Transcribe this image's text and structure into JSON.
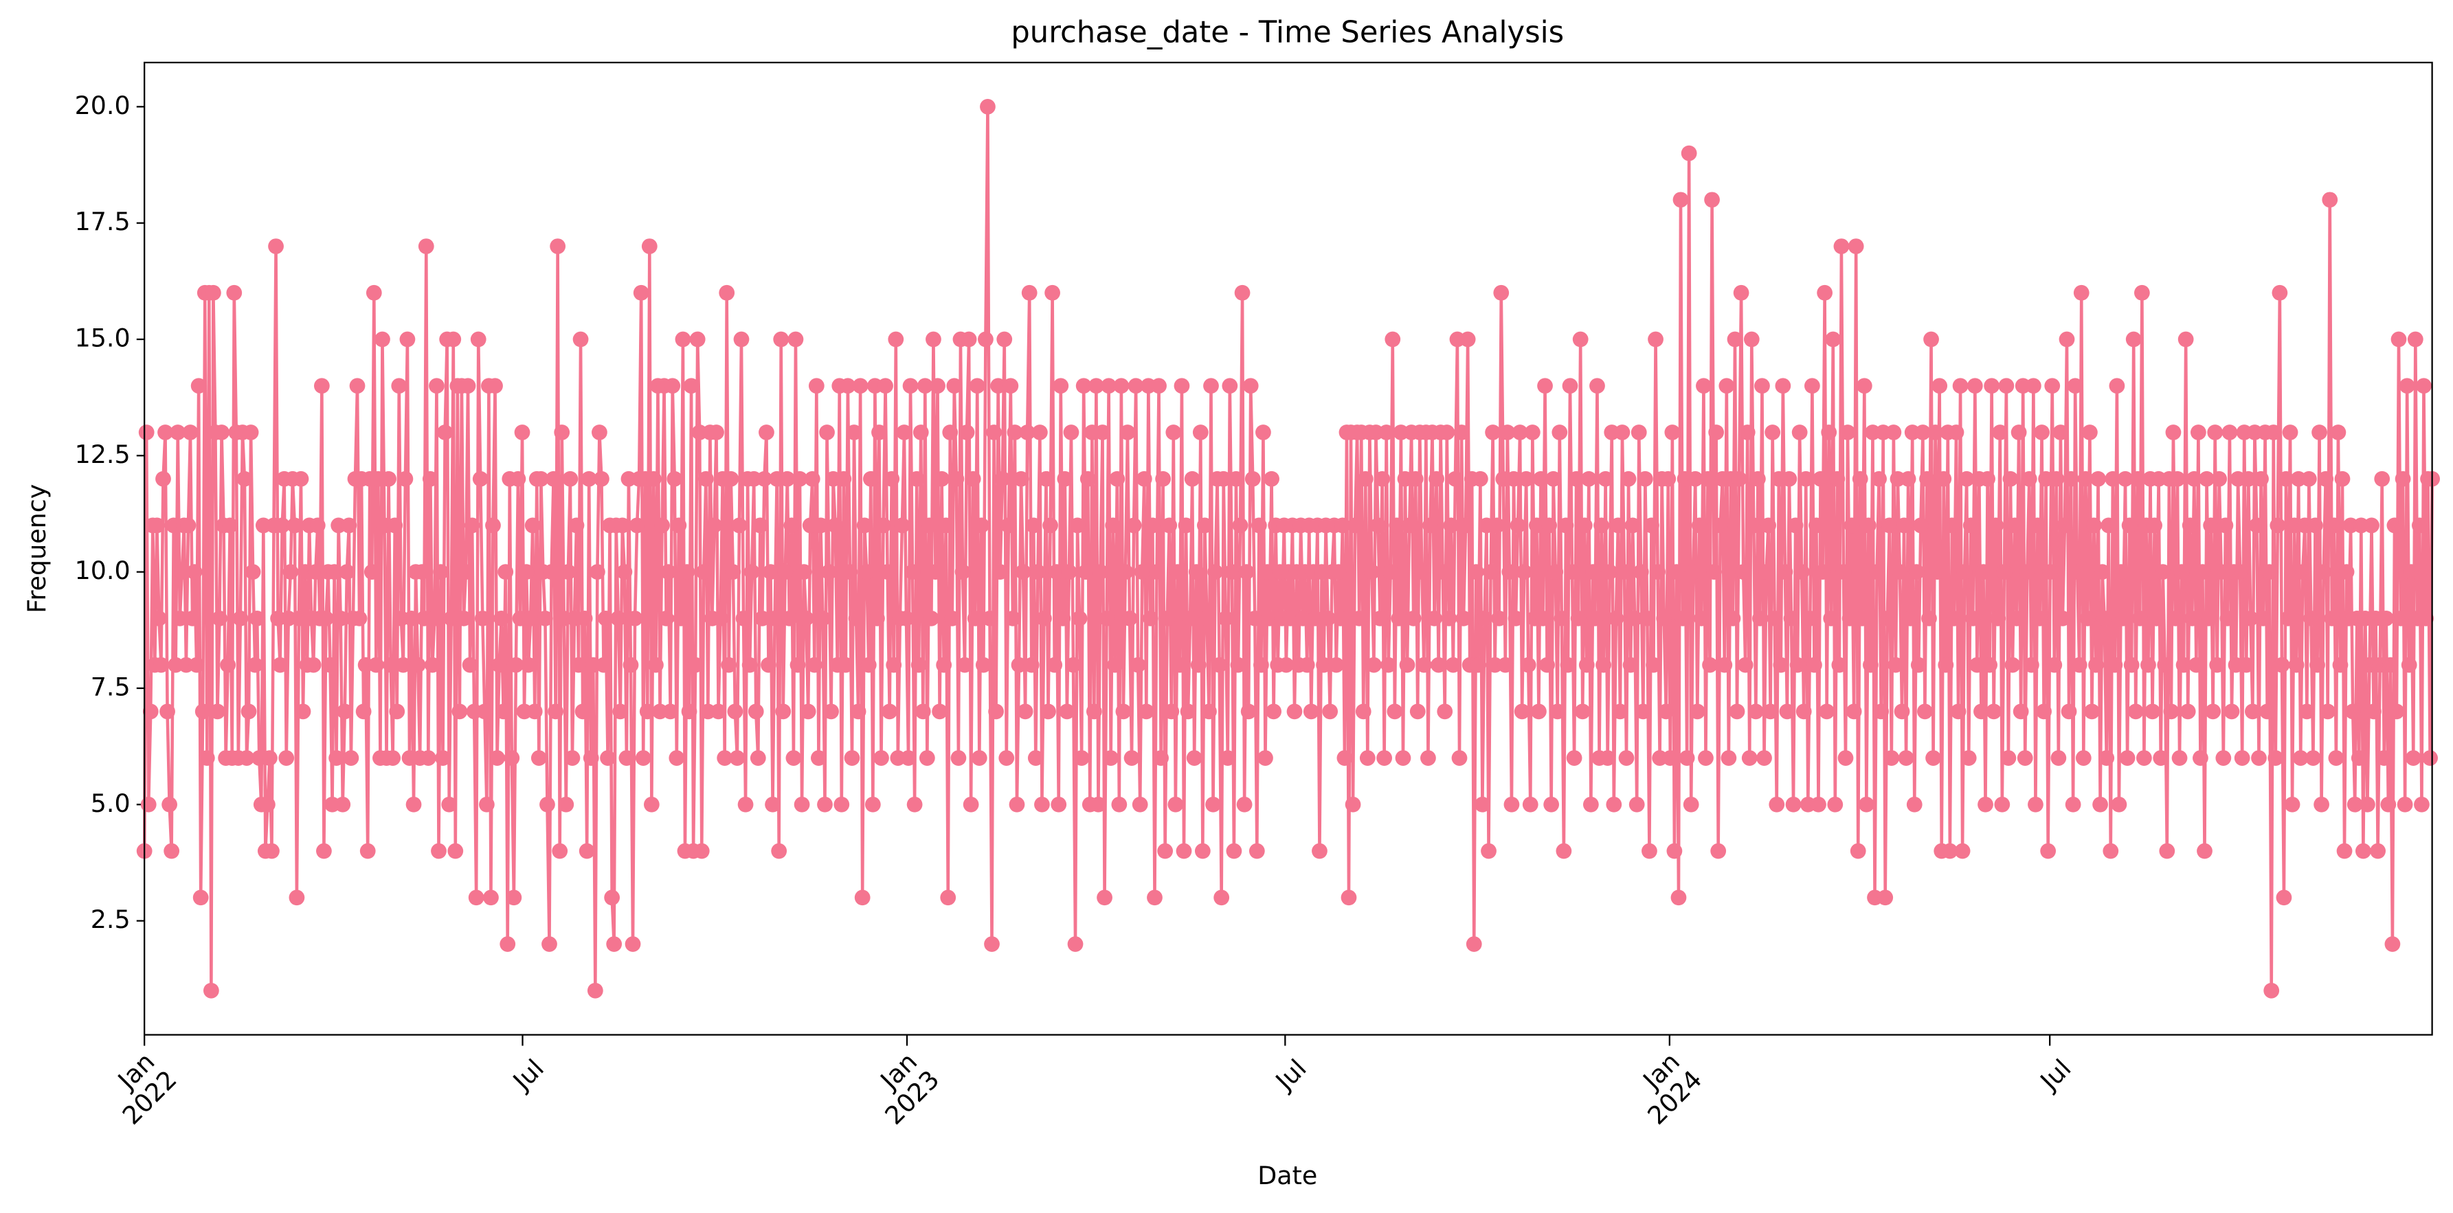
{
  "chart_data": {
    "type": "line",
    "title": "purchase_date - Time Series Analysis",
    "x_label": "Date",
    "y_label": "Frequency",
    "color": "#f47590",
    "marker": true,
    "grid": false,
    "xlim": [
      "2022-01-01",
      "2024-12-31"
    ],
    "xticks": [
      {
        "value": "2022-01-01",
        "label": "Jan 2022"
      },
      {
        "value": "2022-07-01",
        "label": "Jul"
      },
      {
        "value": "2023-01-01",
        "label": "Jan 2023"
      },
      {
        "value": "2023-07-01",
        "label": "Jul"
      },
      {
        "value": "2024-01-01",
        "label": "Jan 2024"
      },
      {
        "value": "2024-07-01",
        "label": "Jul"
      }
    ],
    "ylim": [
      0.05,
      20.95
    ],
    "yticks": [
      2.5,
      {
        "value": 5,
        "label": "5.0"
      },
      7.5,
      {
        "value": 10,
        "label": "10.0"
      },
      12.5,
      {
        "value": 15,
        "label": "15.0"
      },
      17.5,
      {
        "value": 20,
        "label": "20.0"
      }
    ],
    "values": [
      4,
      13,
      5,
      7,
      11,
      8,
      11,
      9,
      8,
      12,
      13,
      7,
      5,
      4,
      11,
      8,
      13,
      9,
      10,
      11,
      8,
      11,
      13,
      9,
      10,
      8,
      14,
      3,
      7,
      16,
      6,
      16,
      1,
      16,
      13,
      7,
      9,
      13,
      11,
      6,
      8,
      11,
      6,
      16,
      13,
      6,
      9,
      13,
      12,
      6,
      7,
      13,
      10,
      8,
      9,
      6,
      5,
      11,
      4,
      5,
      6,
      4,
      11,
      17,
      9,
      8,
      11,
      12,
      6,
      9,
      10,
      12,
      11,
      3,
      9,
      12,
      7,
      10,
      8,
      11,
      9,
      8,
      10,
      11,
      9,
      14,
      4,
      9,
      10,
      8,
      5,
      10,
      6,
      11,
      9,
      5,
      7,
      10,
      11,
      6,
      9,
      12,
      14,
      9,
      12,
      7,
      8,
      4,
      12,
      10,
      16,
      8,
      12,
      6,
      15,
      11,
      6,
      12,
      8,
      6,
      11,
      7,
      14,
      9,
      8,
      12,
      15,
      6,
      9,
      5,
      10,
      8,
      6,
      10,
      9,
      17,
      6,
      12,
      8,
      9,
      14,
      4,
      10,
      6,
      13,
      15,
      5,
      9,
      15,
      4,
      14,
      7,
      14,
      9,
      10,
      14,
      8,
      11,
      7,
      3,
      15,
      12,
      9,
      7,
      5,
      14,
      3,
      11,
      14,
      6,
      8,
      9,
      7,
      10,
      2,
      12,
      6,
      3,
      8,
      12,
      9,
      13,
      7,
      10,
      8,
      9,
      11,
      7,
      12,
      6,
      12,
      10,
      9,
      5,
      2,
      10,
      12,
      7,
      17,
      4,
      13,
      9,
      5,
      10,
      12,
      6,
      9,
      11,
      8,
      15,
      7,
      9,
      4,
      12,
      6,
      8,
      1,
      10,
      13,
      12,
      8,
      9,
      6,
      11,
      3,
      2,
      11,
      9,
      7,
      11,
      10,
      6,
      12,
      8,
      2,
      9,
      11,
      12,
      16,
      6,
      12,
      7,
      17,
      5,
      12,
      8,
      14,
      7,
      11,
      14,
      9,
      10,
      7,
      14,
      12,
      6,
      11,
      9,
      15,
      4,
      10,
      7,
      14,
      4,
      8,
      15,
      13,
      4,
      10,
      12,
      7,
      13,
      9,
      11,
      13,
      7,
      9,
      12,
      6,
      16,
      8,
      12,
      10,
      7,
      6,
      11,
      15,
      9,
      5,
      12,
      8,
      10,
      12,
      7,
      6,
      11,
      9,
      12,
      13,
      8,
      10,
      5,
      9,
      12,
      4,
      15,
      7,
      10,
      12,
      9,
      11,
      6,
      15,
      8,
      12,
      5,
      10,
      9,
      7,
      11,
      12,
      8,
      14,
      6,
      11,
      9,
      5,
      13,
      10,
      7,
      12,
      11,
      8,
      14,
      5,
      12,
      8,
      14,
      10,
      6,
      13,
      9,
      7,
      14,
      3,
      11,
      10,
      8,
      12,
      5,
      14,
      9,
      13,
      6,
      11,
      14,
      10,
      7,
      12,
      8,
      15,
      6,
      9,
      11,
      13,
      9,
      6,
      14,
      10,
      5,
      12,
      8,
      13,
      7,
      14,
      6,
      11,
      9,
      15,
      10,
      14,
      7,
      12,
      8,
      11,
      3,
      13,
      9,
      14,
      12,
      6,
      15,
      10,
      8,
      13,
      15,
      5,
      12,
      9,
      14,
      6,
      11,
      8,
      15,
      20,
      9,
      2,
      13,
      7,
      14,
      10,
      12,
      15,
      6,
      11,
      14,
      9,
      13,
      5,
      8,
      12,
      10,
      7,
      13,
      16,
      8,
      11,
      6,
      10,
      13,
      5,
      9,
      12,
      7,
      11,
      16,
      8,
      10,
      5,
      14,
      9,
      12,
      7,
      10,
      13,
      8,
      2,
      11,
      9,
      6,
      14,
      10,
      12,
      5,
      13,
      7,
      14,
      5,
      10,
      13,
      3,
      9,
      14,
      6,
      11,
      8,
      12,
      5,
      14,
      7,
      10,
      13,
      9,
      6,
      11,
      14,
      8,
      5,
      10,
      12,
      7,
      14,
      9,
      11,
      3,
      10,
      14,
      6,
      12,
      4,
      9,
      11,
      7,
      13,
      5,
      10,
      8,
      14,
      4,
      11,
      7,
      9,
      12,
      6,
      10,
      8,
      13,
      4,
      11,
      9,
      7,
      14,
      5,
      10,
      12,
      8,
      3,
      12,
      9,
      6,
      14,
      10,
      4,
      12,
      8,
      11,
      16,
      5,
      10,
      7,
      14,
      12,
      9,
      4,
      11,
      8,
      13,
      6,
      10,
      9,
      12,
      7,
      11,
      8,
      10,
      9,
      11,
      8,
      10,
      9,
      11,
      7,
      10,
      8,
      11,
      9,
      10,
      8,
      11,
      7,
      10,
      9,
      11,
      4,
      10,
      8,
      11,
      9,
      7,
      10,
      11,
      8,
      10,
      9,
      11,
      6,
      13,
      3,
      13,
      5,
      11,
      13,
      9,
      13,
      7,
      12,
      6,
      13,
      10,
      8,
      13,
      11,
      9,
      12,
      6,
      13,
      8,
      10,
      15,
      7,
      11,
      9,
      13,
      6,
      12,
      8,
      11,
      13,
      9,
      12,
      7,
      13,
      10,
      8,
      13,
      6,
      11,
      13,
      9,
      12,
      8,
      13,
      10,
      7,
      13,
      9,
      11,
      8,
      12,
      15,
      6,
      13,
      9,
      11,
      15,
      8,
      12,
      2,
      10,
      8,
      12,
      5,
      9,
      11,
      4,
      10,
      13,
      8,
      11,
      9,
      16,
      12,
      8,
      13,
      10,
      5,
      12,
      9,
      11,
      13,
      7,
      10,
      12,
      8,
      5,
      13,
      9,
      11,
      7,
      12,
      9,
      14,
      8,
      11,
      5,
      12,
      10,
      7,
      13,
      9,
      4,
      11,
      8,
      14,
      10,
      6,
      12,
      9,
      15,
      7,
      11,
      8,
      12,
      5,
      10,
      9,
      14,
      6,
      11,
      8,
      12,
      6,
      10,
      13,
      5,
      9,
      11,
      7,
      13,
      10,
      6,
      12,
      8,
      11,
      9,
      5,
      13,
      10,
      7,
      12,
      9,
      4,
      11,
      8,
      15,
      10,
      6,
      12,
      9,
      7,
      12,
      6,
      13,
      4,
      10,
      3,
      18,
      9,
      12,
      6,
      19,
      5,
      10,
      12,
      7,
      11,
      9,
      14,
      6,
      12,
      8,
      18,
      10,
      13,
      4,
      11,
      12,
      8,
      14,
      6,
      12,
      9,
      15,
      7,
      12,
      16,
      10,
      8,
      13,
      6,
      15,
      11,
      7,
      12,
      9,
      14,
      6,
      10,
      11,
      7,
      13,
      9,
      5,
      12,
      8,
      14,
      10,
      7,
      12,
      9,
      5,
      11,
      8,
      13,
      10,
      7,
      12,
      5,
      9,
      14,
      8,
      11,
      5,
      12,
      10,
      16,
      7,
      13,
      9,
      15,
      5,
      12,
      8,
      17,
      10,
      6,
      13,
      9,
      11,
      7,
      17,
      4,
      12,
      9,
      14,
      5,
      11,
      8,
      13,
      3,
      10,
      12,
      7,
      13,
      3,
      9,
      11,
      6,
      13,
      8,
      12,
      10,
      7,
      11,
      6,
      12,
      9,
      13,
      5,
      10,
      8,
      11,
      13,
      7,
      12,
      9,
      15,
      6,
      13,
      10,
      14,
      4,
      12,
      8,
      13,
      4,
      11,
      9,
      13,
      7,
      14,
      4,
      10,
      12,
      6,
      11,
      9,
      14,
      8,
      12,
      7,
      10,
      5,
      12,
      8,
      14,
      7,
      11,
      9,
      13,
      5,
      10,
      14,
      6,
      12,
      8,
      11,
      9,
      13,
      7,
      14,
      6,
      10,
      12,
      8,
      14,
      5,
      11,
      9,
      13,
      7,
      12,
      4,
      10,
      14,
      8,
      12,
      6,
      13,
      9,
      11,
      15,
      7,
      12,
      5,
      14,
      10,
      8,
      16,
      6,
      12,
      9,
      13,
      7,
      11,
      8,
      12,
      5,
      10,
      9,
      6,
      11,
      4,
      12,
      8,
      14,
      5,
      10,
      9,
      12,
      6,
      11,
      8,
      15,
      7,
      12,
      9,
      16,
      6,
      11,
      8,
      12,
      7,
      11,
      9,
      12,
      6,
      10,
      8,
      4,
      12,
      7,
      13,
      9,
      12,
      6,
      10,
      8,
      15,
      7,
      11,
      9,
      12,
      8,
      13,
      6,
      10,
      4,
      12,
      9,
      11,
      7,
      13,
      8,
      12,
      10,
      6,
      11,
      9,
      13,
      7,
      10,
      8,
      12,
      10,
      6,
      13,
      8,
      12,
      9,
      7,
      13,
      11,
      6,
      12,
      9,
      13,
      7,
      10,
      1,
      13,
      6,
      11,
      16,
      8,
      3,
      12,
      9,
      13,
      5,
      11,
      8,
      12,
      6,
      10,
      11,
      7,
      12,
      9,
      6,
      11,
      8,
      13,
      5,
      10,
      12,
      7,
      18,
      9,
      11,
      6,
      13,
      8,
      12,
      4,
      10,
      9,
      11,
      7,
      5,
      9,
      6,
      11,
      4,
      9,
      5,
      8,
      11,
      7,
      9,
      4,
      8,
      12,
      6,
      9,
      5,
      8,
      2,
      11,
      7,
      15,
      9,
      12,
      5,
      14,
      8,
      10,
      6,
      15,
      9,
      11,
      5,
      14,
      9,
      12,
      6,
      12
    ]
  }
}
